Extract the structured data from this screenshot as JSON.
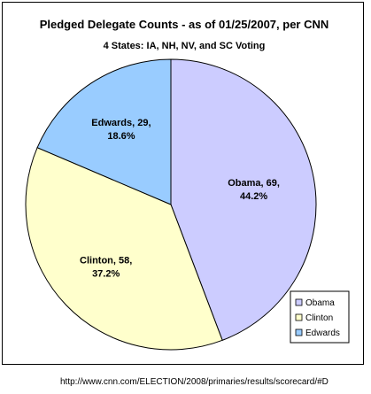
{
  "chart_data": {
    "type": "pie",
    "title": "Pledged Delegate Counts  -  as of 01/25/2007, per CNN",
    "subtitle": "4 States:  IA, NH, NV, and SC Voting",
    "slices": [
      {
        "name": "Obama",
        "value": 69,
        "percent": 44.2,
        "label_line1": "Obama, 69,",
        "label_line2": "44.2%",
        "color": "#ccccff"
      },
      {
        "name": "Clinton",
        "value": 58,
        "percent": 37.2,
        "label_line1": "Clinton, 58,",
        "label_line2": "37.2%",
        "color": "#ffffcc"
      },
      {
        "name": "Edwards",
        "value": 29,
        "percent": 18.6,
        "label_line1": "Edwards, 29,",
        "label_line2": "18.6%",
        "color": "#99ccff"
      }
    ],
    "legend": {
      "position": "bottom-right",
      "entries": [
        "Obama",
        "Clinton",
        "Edwards"
      ]
    }
  },
  "source": "http://www.cnn.com/ELECTION/2008/primaries/results/scorecard/#D"
}
